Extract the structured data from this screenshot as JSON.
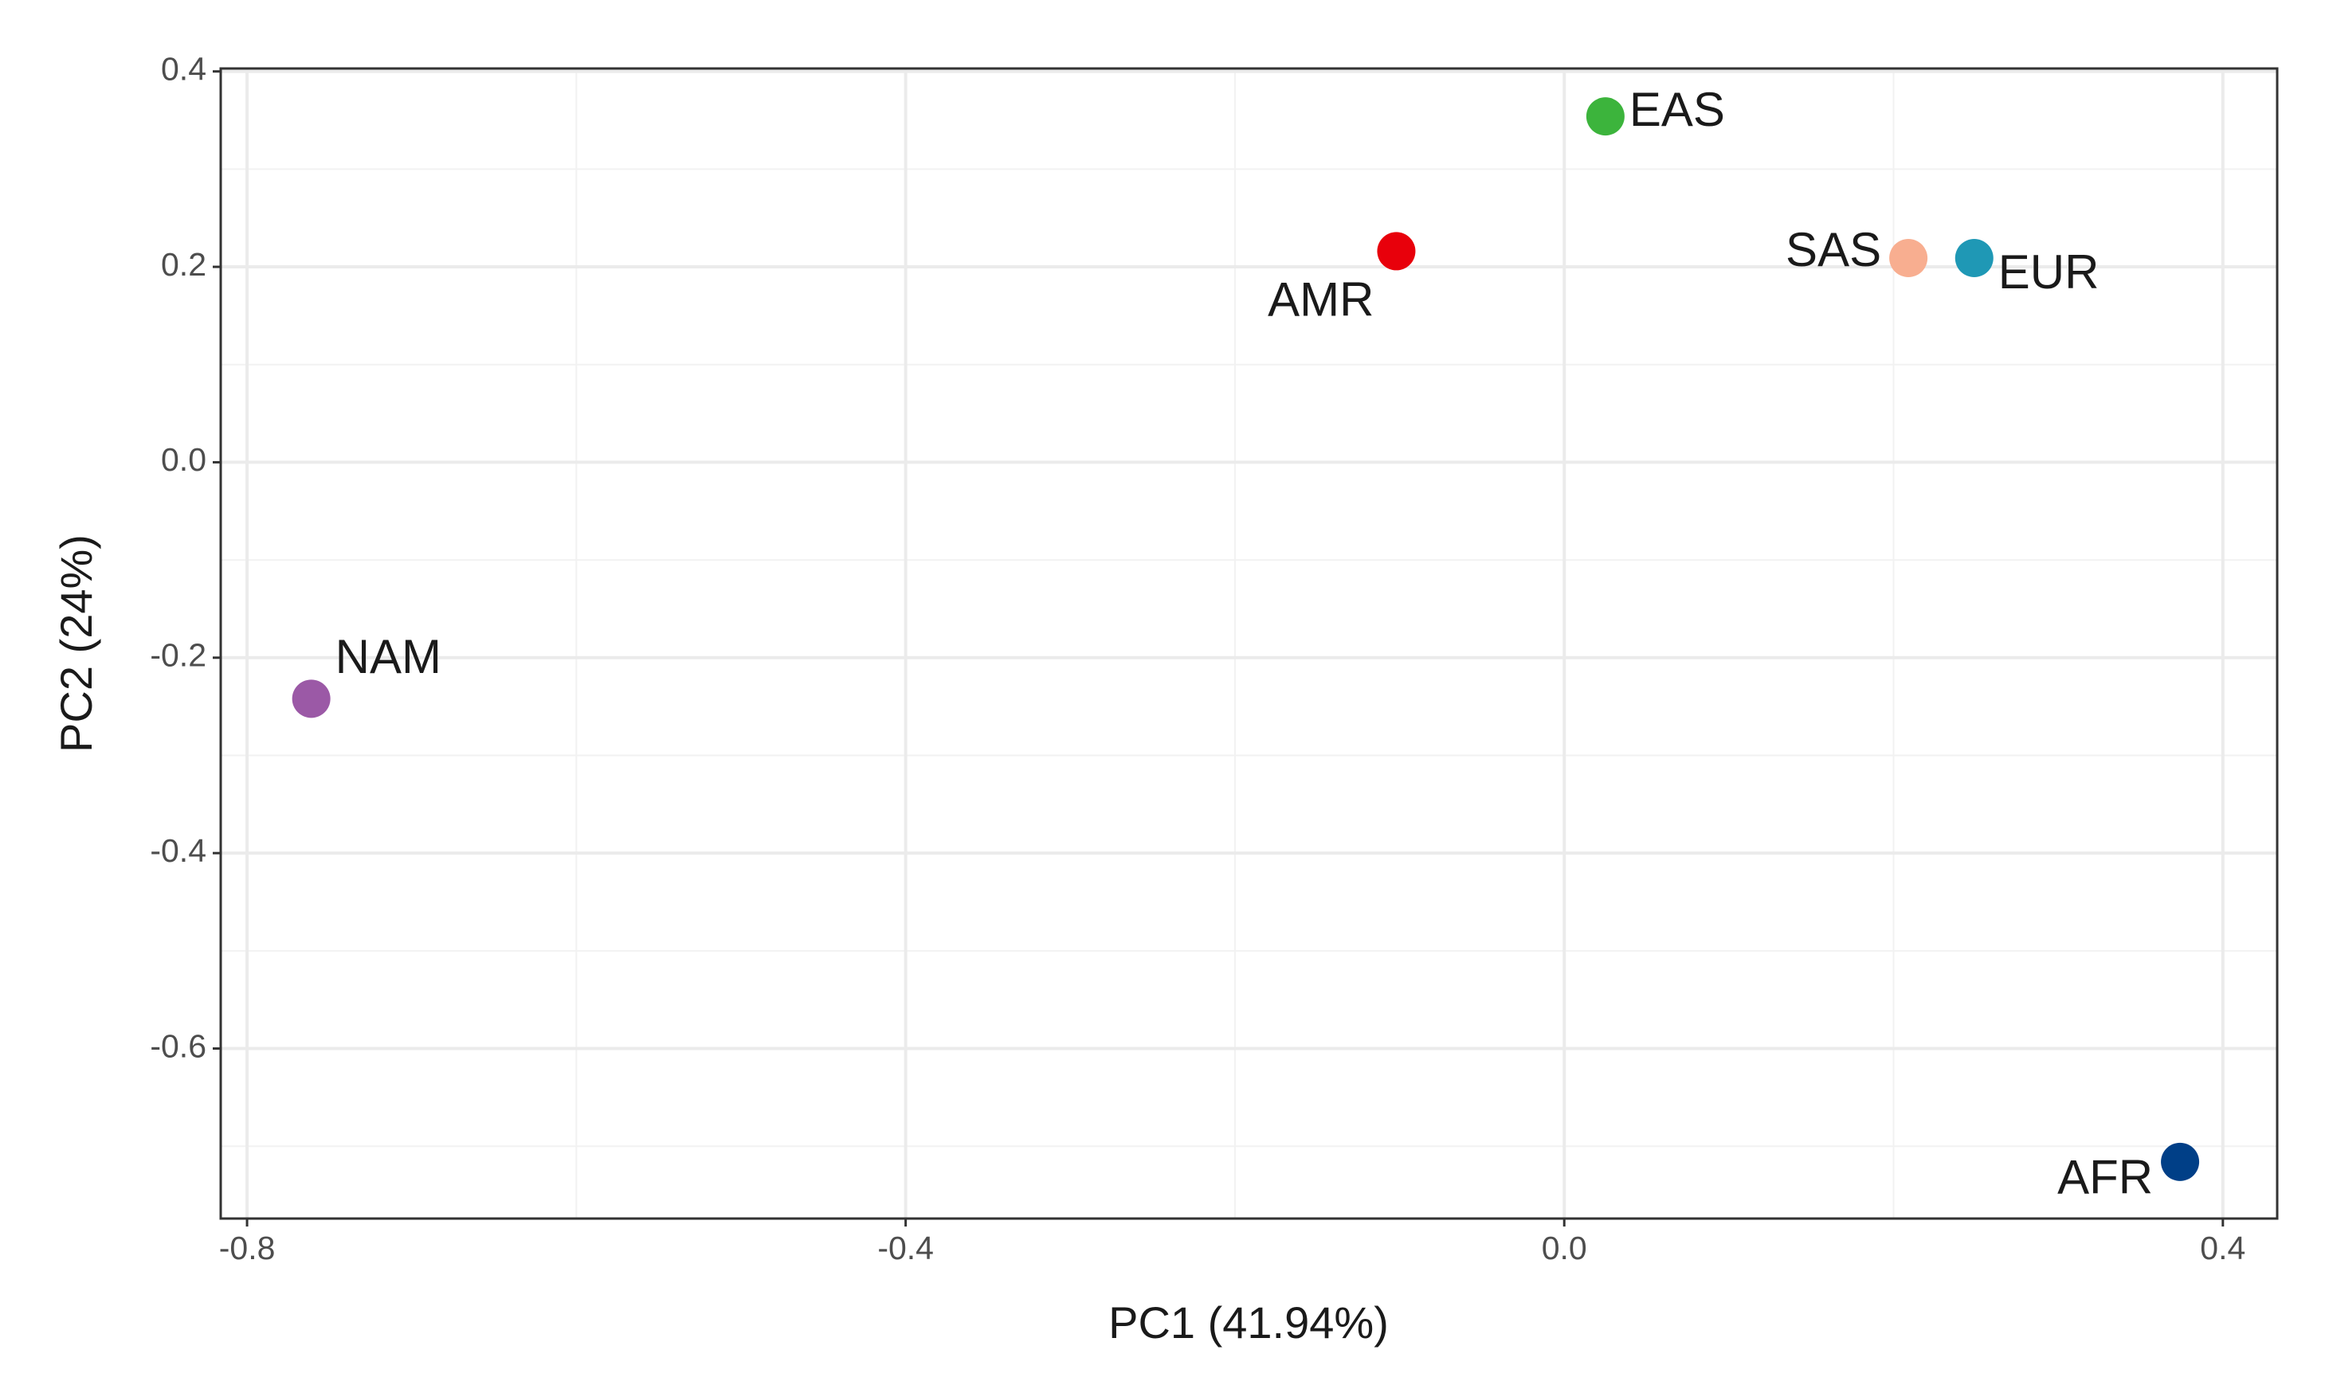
{
  "chart_data": {
    "type": "scatter",
    "x_label": "PC1 (41.94%)",
    "y_label": "PC2 (24%)",
    "labels": [
      "NAM",
      "AMR",
      "EAS",
      "SAS",
      "EUR",
      "AFR"
    ],
    "x": [
      -0.761,
      -0.102,
      0.025,
      0.209,
      0.249,
      0.374
    ],
    "y": [
      -0.242,
      0.216,
      0.354,
      0.209,
      0.209,
      -0.716
    ],
    "colors": [
      "#9b59a6",
      "#e8000b",
      "#3cb43c",
      "#f8ae90",
      "#1f98b5",
      "#003f87"
    ],
    "xlim": [
      -0.816,
      0.433
    ],
    "ylim": [
      -0.774,
      0.403
    ],
    "xticks": [
      -0.8,
      -0.4,
      0.0,
      0.4
    ],
    "yticks": [
      -0.6,
      -0.4,
      -0.2,
      0.0,
      0.2,
      0.4
    ],
    "grid": true
  }
}
